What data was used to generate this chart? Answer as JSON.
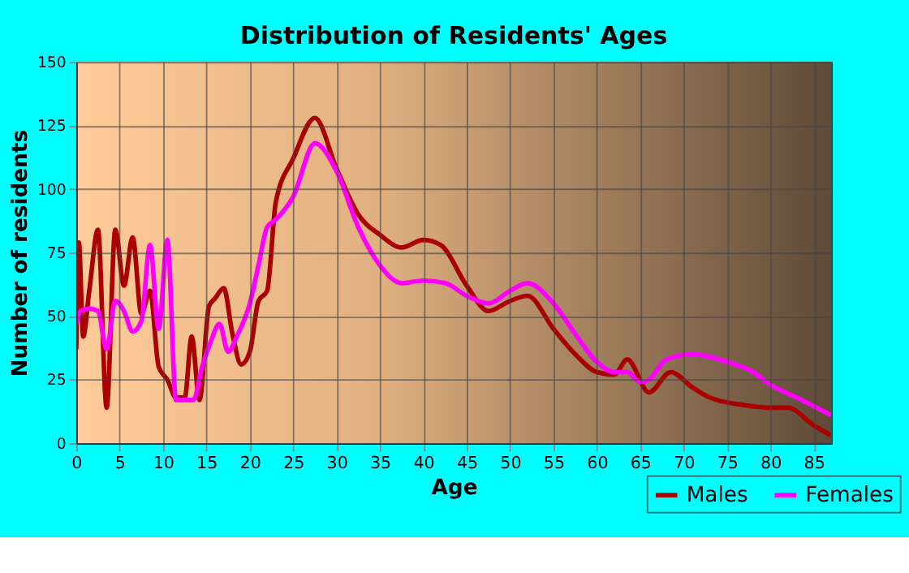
{
  "chart_data": {
    "type": "line",
    "title": "Distribution of Residents' Ages",
    "xlabel": "Age",
    "ylabel": "Number of residents",
    "xlim": [
      0,
      87
    ],
    "xticks": [
      0,
      5,
      10,
      15,
      20,
      25,
      30,
      35,
      40,
      45,
      50,
      55,
      60,
      65,
      70,
      75,
      80,
      85
    ],
    "ylim": [
      0,
      150
    ],
    "yticks": [
      0,
      25,
      50,
      75,
      100,
      125,
      150
    ],
    "grid": true,
    "legend": "bottom right",
    "line_style": "solid",
    "marker": "none",
    "series": [
      {
        "name": "Males",
        "color": "#aa0000",
        "x": [
          0,
          0.3,
          0.8,
          1.5,
          2.5,
          3.5,
          4.5,
          5.5,
          6.5,
          7.5,
          8.5,
          9.5,
          10.5,
          11.5,
          12.5,
          13.3,
          14.2,
          15.3,
          16,
          17,
          18,
          19,
          20,
          21,
          22,
          23,
          25,
          27.5,
          30,
          32.5,
          35,
          37.5,
          40,
          42,
          45,
          47.5,
          50,
          52,
          55,
          57.5,
          60,
          62,
          63.5,
          66,
          68.5,
          71,
          73,
          77,
          80,
          82,
          85,
          87
        ],
        "values": [
          37,
          79,
          42,
          60,
          84,
          14,
          84,
          62,
          81,
          51,
          60,
          30,
          25,
          18,
          18,
          42,
          17,
          54,
          57,
          61,
          43,
          31,
          36,
          56,
          60,
          95,
          112,
          128,
          108,
          90,
          82,
          77,
          80,
          78,
          62,
          52,
          56,
          58,
          45,
          35,
          28,
          27,
          33,
          20,
          28,
          22,
          18,
          15,
          14,
          14,
          7,
          3
        ]
      },
      {
        "name": "Females",
        "color": "#ff00ff",
        "x": [
          0,
          0.5,
          1.5,
          2.5,
          3.5,
          4.5,
          5.5,
          6.5,
          7.5,
          8.5,
          9.5,
          10.5,
          11.5,
          12.5,
          13.5,
          14.5,
          15.5,
          16.5,
          17.5,
          18.5,
          20,
          21,
          22,
          23,
          25,
          27.5,
          30,
          32.5,
          35,
          37.5,
          40,
          42.5,
          45,
          47.5,
          50,
          52,
          55,
          57.5,
          60,
          62,
          63.5,
          65,
          66,
          68,
          71,
          75,
          78,
          80,
          83,
          87
        ],
        "values": [
          47,
          52,
          53,
          52,
          37,
          56,
          52,
          44,
          48,
          78,
          45,
          80,
          17,
          17,
          17,
          30,
          40,
          47,
          36,
          42,
          55,
          70,
          85,
          88,
          97,
          118,
          107,
          85,
          70,
          63,
          64,
          63,
          58,
          55,
          60,
          63,
          55,
          43,
          32,
          28,
          28,
          24,
          25,
          33,
          35,
          32,
          28,
          23,
          18,
          11
        ]
      }
    ]
  }
}
